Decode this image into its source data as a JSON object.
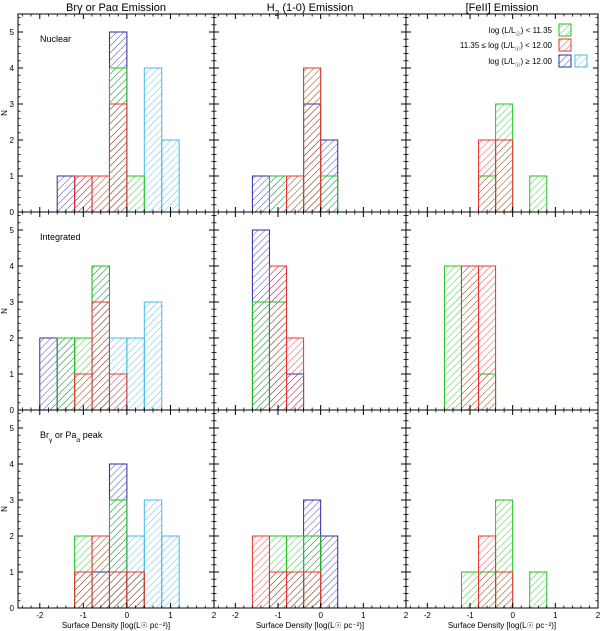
{
  "chart_data": {
    "type": "histogram-grid",
    "xlabel": "Surface Density [log(L☉ pc⁻²)]",
    "ylabel": "N",
    "xlim": [
      -2.5,
      2
    ],
    "ylim": [
      0,
      5.5
    ],
    "xticks": [
      -2,
      -1,
      0,
      1,
      2
    ],
    "yticks": [
      0,
      1,
      2,
      3,
      4,
      5
    ],
    "bin_width": 0.4,
    "columns": [
      {
        "title_parts": [
          "Br",
          "γ",
          " or Pa",
          "α",
          " Emission"
        ]
      },
      {
        "title_parts": [
          "H",
          "2",
          " (1-0) Emission"
        ]
      },
      {
        "title_parts": [
          "[FeII] Emission"
        ]
      }
    ],
    "rows": [
      {
        "label_parts": [
          "Nuclear"
        ]
      },
      {
        "label_parts": [
          "Integrated"
        ]
      },
      {
        "label_parts": [
          "Br",
          "γ",
          " or Pa",
          "α",
          " peak"
        ]
      }
    ],
    "legend": [
      {
        "name": "low",
        "parts": [
          "log (L/L",
          "☉",
          ") < 11.35"
        ],
        "color": "#22c122"
      },
      {
        "name": "mid",
        "parts": [
          "11.35 ≤ log (L/L",
          "☉",
          ") < 12.00"
        ],
        "color": "#e83232"
      },
      {
        "name": "high",
        "parts": [
          "log (L/L",
          "☉",
          ") ≥ 12.00"
        ],
        "color": "#2b2ba6"
      },
      {
        "name": "agn",
        "parts": [
          ""
        ],
        "color": "#45b8e6"
      }
    ],
    "panels": [
      {
        "row": 0,
        "col": 0,
        "series": {
          "agn": [
            [
              0.4,
              0.8,
              4
            ],
            [
              0.8,
              1.2,
              2
            ]
          ],
          "high": [
            [
              -1.6,
              -1.2,
              1
            ],
            [
              -1.2,
              -0.8,
              1
            ],
            [
              -0.4,
              0.0,
              5
            ]
          ],
          "low": [
            [
              -0.8,
              -0.4,
              1
            ],
            [
              -0.4,
              0.0,
              4
            ],
            [
              0.0,
              0.4,
              1
            ]
          ],
          "mid": [
            [
              -1.2,
              -0.8,
              1
            ],
            [
              -0.8,
              -0.4,
              1
            ],
            [
              -0.4,
              0.0,
              3
            ]
          ]
        }
      },
      {
        "row": 0,
        "col": 1,
        "series": {
          "agn": [],
          "high": [
            [
              -1.6,
              -1.2,
              1
            ],
            [
              -1.2,
              -0.8,
              1
            ],
            [
              -0.4,
              0.0,
              3
            ],
            [
              0.0,
              0.4,
              2
            ]
          ],
          "low": [
            [
              -1.2,
              -0.8,
              1
            ],
            [
              -0.8,
              -0.4,
              1
            ],
            [
              -0.4,
              0.0,
              4
            ],
            [
              0.0,
              0.4,
              1
            ]
          ],
          "mid": [
            [
              -0.8,
              -0.4,
              1
            ],
            [
              -0.4,
              0.0,
              4
            ]
          ]
        }
      },
      {
        "row": 0,
        "col": 2,
        "series": {
          "agn": [],
          "high": [],
          "low": [
            [
              -0.8,
              -0.4,
              1
            ],
            [
              -0.4,
              0.0,
              3
            ],
            [
              0.4,
              0.8,
              1
            ]
          ],
          "mid": [
            [
              -0.8,
              -0.4,
              2
            ],
            [
              -0.4,
              0.0,
              2
            ]
          ]
        }
      },
      {
        "row": 1,
        "col": 0,
        "series": {
          "agn": [
            [
              -0.4,
              0.0,
              2
            ],
            [
              0.0,
              0.4,
              2
            ],
            [
              0.4,
              0.8,
              3
            ]
          ],
          "high": [
            [
              -2.0,
              -1.6,
              2
            ],
            [
              -1.6,
              -1.2,
              2
            ],
            [
              -0.8,
              -0.4,
              4
            ]
          ],
          "low": [
            [
              -1.6,
              -1.2,
              2
            ],
            [
              -1.2,
              -0.8,
              2
            ],
            [
              -0.8,
              -0.4,
              4
            ]
          ],
          "mid": [
            [
              -1.2,
              -0.8,
              1
            ],
            [
              -0.8,
              -0.4,
              3
            ],
            [
              -0.4,
              0.0,
              1
            ]
          ]
        }
      },
      {
        "row": 1,
        "col": 1,
        "series": {
          "agn": [],
          "high": [
            [
              -1.6,
              -1.2,
              5
            ],
            [
              -1.2,
              -0.8,
              4
            ],
            [
              -0.8,
              -0.4,
              1
            ]
          ],
          "low": [
            [
              -1.6,
              -1.2,
              3
            ],
            [
              -1.2,
              -0.8,
              3
            ]
          ],
          "mid": [
            [
              -1.2,
              -0.8,
              4
            ],
            [
              -0.8,
              -0.4,
              2
            ]
          ]
        }
      },
      {
        "row": 1,
        "col": 2,
        "series": {
          "agn": [],
          "high": [],
          "low": [
            [
              -1.6,
              -1.2,
              4
            ],
            [
              -1.2,
              -0.8,
              4
            ],
            [
              -0.8,
              -0.4,
              1
            ]
          ],
          "mid": [
            [
              -1.2,
              -0.8,
              4
            ],
            [
              -0.8,
              -0.4,
              4
            ]
          ]
        }
      },
      {
        "row": 2,
        "col": 0,
        "series": {
          "agn": [
            [
              -0.4,
              0.0,
              1
            ],
            [
              0.0,
              0.4,
              2
            ],
            [
              0.4,
              0.8,
              3
            ],
            [
              0.8,
              1.2,
              2
            ]
          ],
          "high": [
            [
              -1.2,
              -0.8,
              1
            ],
            [
              -0.8,
              -0.4,
              1
            ],
            [
              -0.4,
              0.0,
              4
            ],
            [
              0.0,
              0.4,
              1
            ]
          ],
          "low": [
            [
              -1.2,
              -0.8,
              2
            ],
            [
              -0.8,
              -0.4,
              2
            ],
            [
              -0.4,
              0.0,
              3
            ],
            [
              0.0,
              0.4,
              1
            ]
          ],
          "mid": [
            [
              -1.2,
              -0.8,
              1
            ],
            [
              -0.8,
              -0.4,
              2
            ],
            [
              -0.4,
              0.0,
              1
            ],
            [
              0.0,
              0.4,
              1
            ]
          ]
        }
      },
      {
        "row": 2,
        "col": 1,
        "series": {
          "agn": [],
          "high": [
            [
              -1.2,
              -0.8,
              1
            ],
            [
              -0.8,
              -0.4,
              1
            ],
            [
              -0.4,
              0.0,
              3
            ],
            [
              0.0,
              0.4,
              2
            ]
          ],
          "low": [
            [
              -1.2,
              -0.8,
              2
            ],
            [
              -0.8,
              -0.4,
              2
            ],
            [
              -0.4,
              0.0,
              2
            ]
          ],
          "mid": [
            [
              -1.6,
              -1.2,
              2
            ],
            [
              -1.2,
              -0.8,
              1
            ],
            [
              -0.8,
              -0.4,
              1
            ],
            [
              -0.4,
              0.0,
              1
            ]
          ]
        }
      },
      {
        "row": 2,
        "col": 2,
        "series": {
          "agn": [],
          "high": [],
          "low": [
            [
              -1.2,
              -0.8,
              1
            ],
            [
              -0.8,
              -0.4,
              1
            ],
            [
              -0.4,
              0.0,
              3
            ],
            [
              0.4,
              0.8,
              1
            ]
          ],
          "mid": [
            [
              -0.8,
              -0.4,
              2
            ],
            [
              -0.4,
              0.0,
              1
            ]
          ]
        }
      }
    ]
  }
}
